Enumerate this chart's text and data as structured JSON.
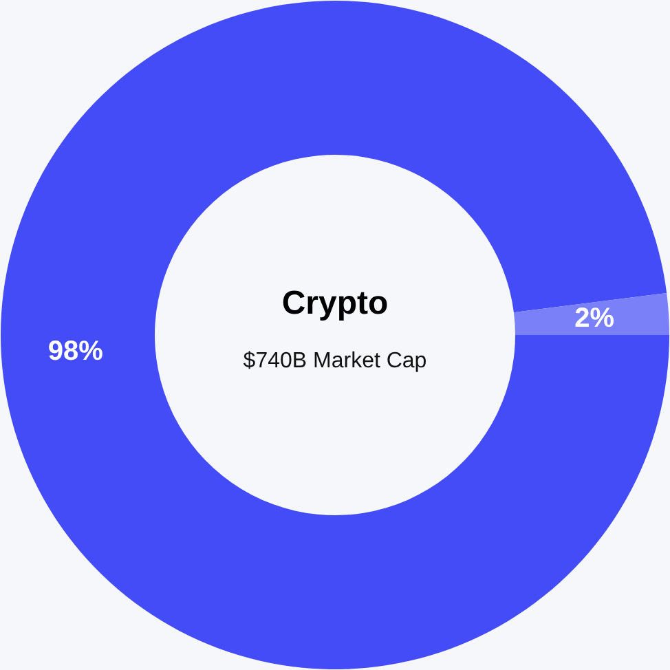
{
  "chart_data": {
    "type": "donut",
    "title": "Crypto",
    "subtitle": "$740B Market Cap",
    "categories": [
      null,
      null
    ],
    "values": [
      98,
      2
    ],
    "colors": [
      "#444cf7",
      "#7a80f8"
    ],
    "value_labels": [
      "98%",
      "2%"
    ]
  }
}
